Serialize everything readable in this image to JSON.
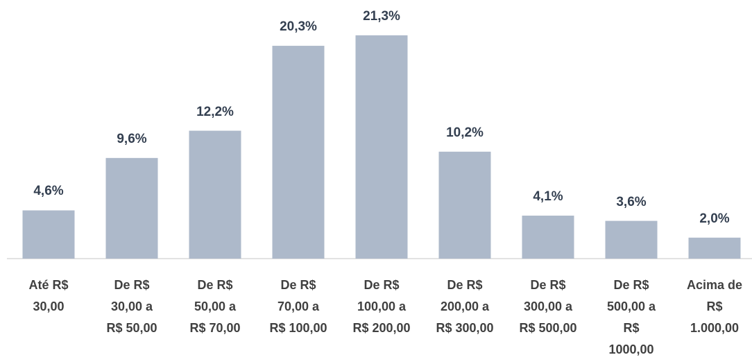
{
  "chart_data": {
    "type": "bar",
    "categories": [
      "Até R$\n30,00",
      "De R$\n30,00 a\nR$ 50,00",
      "De R$\n50,00 a\nR$ 70,00",
      "De R$\n70,00 a\nR$ 100,00",
      "De R$\n100,00 a\nR$ 200,00",
      "De R$\n200,00 a\nR$ 300,00",
      "De R$\n300,00 a\nR$ 500,00",
      "De R$\n500,00 a\nR$\n1000,00",
      "Acima de\nR$\n1.000,00"
    ],
    "values": [
      4.6,
      9.6,
      12.2,
      20.3,
      21.3,
      10.2,
      4.1,
      3.6,
      2.0
    ],
    "value_labels": [
      "4,6%",
      "9,6%",
      "12,2%",
      "20,3%",
      "21,3%",
      "10,2%",
      "4,1%",
      "3,6%",
      "2,0%"
    ],
    "color": "#adb9ca"
  }
}
